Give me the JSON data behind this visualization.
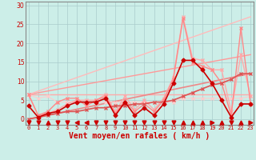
{
  "bg_color": "#cceee8",
  "grid_color": "#aacccc",
  "xlabel": "Vent moyen/en rafales ( km/h )",
  "xlabel_color": "#cc0000",
  "xlabel_fontsize": 7,
  "tick_color": "#cc0000",
  "xticks": [
    0,
    1,
    2,
    3,
    4,
    5,
    6,
    7,
    8,
    9,
    10,
    11,
    12,
    13,
    14,
    15,
    16,
    17,
    18,
    19,
    20,
    21,
    22,
    23
  ],
  "yticks": [
    0,
    5,
    10,
    15,
    20,
    25,
    30
  ],
  "ylim": [
    -1.5,
    31
  ],
  "xlim": [
    -0.3,
    23.3
  ],
  "trend1_x": [
    0,
    23
  ],
  "trend1_y": [
    6.5,
    6.5
  ],
  "trend1_color": "#ffaaaa",
  "trend1_lw": 1.0,
  "trend2_x": [
    0,
    23
  ],
  "trend2_y": [
    6.5,
    17.0
  ],
  "trend2_color": "#ff9999",
  "trend2_lw": 1.0,
  "trend3_x": [
    0,
    23
  ],
  "trend3_y": [
    6.5,
    27.0
  ],
  "trend3_color": "#ffbbbb",
  "trend3_lw": 1.0,
  "trend4_x": [
    0,
    23
  ],
  "trend4_y": [
    0.0,
    12.0
  ],
  "trend4_color": "#ee8888",
  "trend4_lw": 1.2,
  "line_dark_x": [
    0,
    1,
    2,
    3,
    4,
    5,
    6,
    7,
    8,
    9,
    10,
    11,
    12,
    13,
    14,
    15,
    16,
    17,
    18,
    19,
    20,
    21,
    22,
    23
  ],
  "line_dark_y": [
    3.5,
    0.5,
    1.5,
    2.0,
    3.5,
    4.5,
    4.5,
    4.5,
    5.5,
    1.0,
    4.5,
    1.0,
    3.0,
    1.0,
    4.0,
    9.5,
    15.5,
    15.5,
    13.0,
    9.5,
    5.0,
    0.5,
    4.0,
    4.0
  ],
  "line_dark_color": "#cc0000",
  "line_dark_lw": 1.2,
  "line_med1_x": [
    0,
    1,
    2,
    3,
    4,
    5,
    6,
    7,
    8,
    9,
    10,
    11,
    12,
    13,
    14,
    15,
    16,
    17,
    18,
    19,
    20,
    21,
    22,
    23
  ],
  "line_med1_y": [
    6.5,
    1.0,
    2.0,
    4.5,
    5.5,
    5.5,
    3.5,
    5.0,
    6.0,
    1.5,
    5.0,
    2.0,
    4.0,
    2.0,
    5.0,
    10.5,
    26.5,
    15.0,
    14.0,
    13.0,
    9.5,
    1.0,
    24.0,
    4.0
  ],
  "line_med1_color": "#ff8888",
  "line_med1_lw": 1.0,
  "line_med2_x": [
    0,
    1,
    2,
    3,
    4,
    5,
    6,
    7,
    8,
    9,
    10,
    11,
    12,
    13,
    14,
    15,
    16,
    17,
    18,
    19,
    20,
    21,
    22,
    23
  ],
  "line_med2_y": [
    6.5,
    1.0,
    1.5,
    2.5,
    4.0,
    5.0,
    5.0,
    5.0,
    6.5,
    2.0,
    6.0,
    2.5,
    5.0,
    2.5,
    5.5,
    11.0,
    27.0,
    16.0,
    15.5,
    13.0,
    13.0,
    2.0,
    17.0,
    6.0
  ],
  "line_med2_color": "#ffaaaa",
  "line_med2_lw": 1.0,
  "line_flat_x": [
    0,
    1,
    2,
    3,
    4,
    5,
    6,
    7,
    8,
    9,
    10,
    11,
    12,
    13,
    14,
    15,
    16,
    17,
    18,
    19,
    20,
    21,
    22,
    23
  ],
  "line_flat_y": [
    6.5,
    5.5,
    6.0,
    4.5,
    4.5,
    4.5,
    4.5,
    4.5,
    4.5,
    4.5,
    4.5,
    4.5,
    4.5,
    4.5,
    4.5,
    4.5,
    5.5,
    5.5,
    5.5,
    5.5,
    5.5,
    5.5,
    5.5,
    6.0
  ],
  "line_flat_color": "#ffcccc",
  "line_flat_lw": 0.8,
  "line_rise_x": [
    0,
    1,
    2,
    3,
    4,
    5,
    6,
    7,
    8,
    9,
    10,
    11,
    12,
    13,
    14,
    15,
    16,
    17,
    18,
    19,
    20,
    21,
    22,
    23
  ],
  "line_rise_y": [
    0.0,
    0.5,
    1.0,
    1.5,
    2.0,
    2.0,
    2.5,
    3.0,
    3.0,
    3.5,
    3.5,
    4.0,
    4.0,
    4.5,
    4.5,
    5.0,
    6.0,
    7.0,
    8.0,
    9.0,
    9.5,
    10.5,
    12.0,
    12.0
  ],
  "line_rise_color": "#dd5555",
  "line_rise_lw": 1.2,
  "arrows_x": [
    0,
    1,
    2,
    3,
    4,
    5,
    6,
    7,
    8,
    9,
    10,
    11,
    12,
    13,
    14,
    15,
    16,
    17,
    18,
    19,
    20,
    21,
    22,
    23
  ],
  "arrows_dir": [
    "d",
    "d",
    "u",
    "d",
    "d",
    "l",
    "l",
    "d",
    "d",
    "d",
    "d",
    "d",
    "d",
    "d",
    "d",
    "d",
    "u",
    "u",
    "u",
    "r",
    "u",
    "d",
    "u",
    "r"
  ],
  "arrow_color": "#cc0000"
}
